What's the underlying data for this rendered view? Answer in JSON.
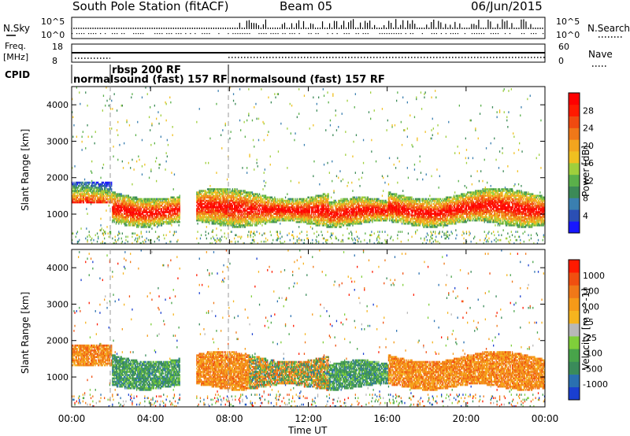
{
  "header": {
    "station": "South Pole Station (fitACF)",
    "beam": "Beam 05",
    "date": "06/Jun/2015"
  },
  "panels": {
    "nsky": {
      "label": "N.Sky",
      "tick_top": "10^5",
      "tick_bottom": "10^0",
      "right_label": "N.Search",
      "right_tick_top": "10^5",
      "right_tick_bottom": "10^0"
    },
    "freq": {
      "label_line1": "Freq.",
      "label_line2": "[MHz]",
      "tick_top": "18",
      "tick_bottom": "8",
      "right_label": "Nave",
      "right_tick_top": "60",
      "right_tick_bottom": "0"
    },
    "cpid": {
      "label": "CPID",
      "segments": [
        {
          "text": "normalsound (fast) 157 RF",
          "start_hour": 0
        },
        {
          "text": "rbsp 200 RF",
          "start_hour": 2
        },
        {
          "text": "normalsound (fast) 157 RF",
          "start_hour": 8
        }
      ]
    }
  },
  "chart_data": [
    {
      "type": "heatmap",
      "title": "",
      "quantity": "Power",
      "xlabel": "",
      "ylabel": "Slant Range [km]",
      "xlim_hours": [
        0,
        24
      ],
      "ylim": [
        180,
        4500
      ],
      "x_ticks": [
        "00:00",
        "04:00",
        "08:00",
        "12:00",
        "16:00",
        "20:00",
        "00:00"
      ],
      "y_ticks": [
        1000,
        2000,
        3000,
        4000
      ],
      "colorbar": {
        "label": "Power [dB]",
        "ticks": [
          "4",
          "8",
          "12",
          "16",
          "20",
          "24",
          "28"
        ],
        "colors": [
          "#1717ff",
          "#2b4fb4",
          "#3a7fb0",
          "#3c8a57",
          "#5ab04a",
          "#9fcf3c",
          "#f0c020",
          "#f3a51e",
          "#f07818",
          "#f04a10",
          "#ff1a00",
          "#ff0000"
        ]
      },
      "dominant_band_km": [
        700,
        1800
      ],
      "core_power_db": 28
    },
    {
      "type": "heatmap",
      "title": "",
      "quantity": "Velocity",
      "xlabel": "Time UT",
      "ylabel": "Slant Range [km]",
      "xlim_hours": [
        0,
        24
      ],
      "ylim": [
        180,
        4500
      ],
      "x_ticks": [
        "00:00",
        "04:00",
        "08:00",
        "12:00",
        "16:00",
        "20:00",
        "00:00"
      ],
      "y_ticks": [
        1000,
        2000,
        3000,
        4000
      ],
      "colorbar": {
        "label": "Velocity [m s^-1]",
        "ticks": [
          "1000",
          "500",
          "100",
          "25",
          "-25",
          "-100",
          "-500",
          "-1000"
        ],
        "colors": [
          "#1a3fd0",
          "#2a70b0",
          "#3a8b5a",
          "#48a44a",
          "#7fcf3a",
          "#b8b8b8",
          "#f5b41e",
          "#f59a18",
          "#f07818",
          "#f04f10",
          "#ff1a00"
        ]
      },
      "dominant_band_km": [
        700,
        1800
      ]
    }
  ]
}
